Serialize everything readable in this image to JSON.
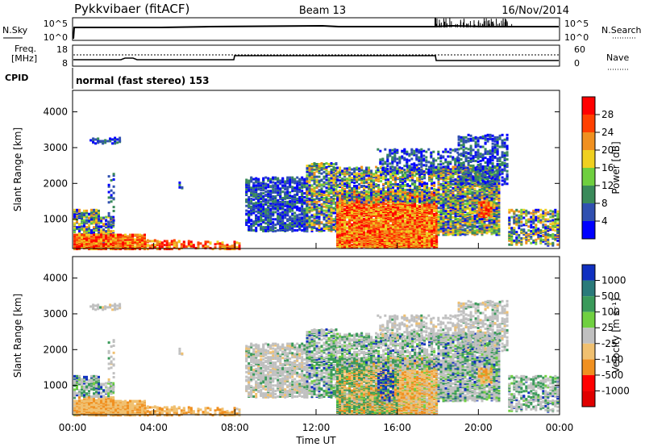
{
  "header": {
    "title": "Pykkvibaer (fitACF)",
    "beam": "Beam 13",
    "date": "16/Nov/2014"
  },
  "status_panels": {
    "nsky_label": "N.Sky",
    "nsky_ticks": [
      "10^5",
      "10^0"
    ],
    "nsearch_label": "N.Search",
    "nsearch_ticks": [
      "10^5",
      "10^0"
    ],
    "freq_label_line1": "Freq.",
    "freq_label_line2": "[MHz]",
    "freq_ticks": [
      "18",
      "8"
    ],
    "nave_label": "Nave",
    "nave_ticks": [
      "60",
      "0"
    ],
    "cpid_label": "CPID",
    "cpid_text": "normal (fast stereo) 153"
  },
  "chart_data": [
    {
      "type": "heatmap",
      "name": "power",
      "ylabel": "Slant Range [km]",
      "yticks": [
        "1000",
        "2000",
        "3000",
        "4000"
      ],
      "ylim": [
        180,
        4600
      ],
      "colorbar_label": "Power [dB]",
      "colorbar_ticks": [
        "4",
        "8",
        "12",
        "16",
        "20",
        "24",
        "28"
      ],
      "colors": [
        "#0000ff",
        "#3050b0",
        "#3a8a5a",
        "#6fcf3f",
        "#f0d020",
        "#f09020",
        "#ff4000",
        "#ff0000"
      ]
    },
    {
      "type": "heatmap",
      "name": "velocity",
      "ylabel": "Slant Range [km]",
      "yticks": [
        "1000",
        "2000",
        "3000",
        "4000"
      ],
      "ylim": [
        180,
        4600
      ],
      "xlabel": "Time UT",
      "xticks": [
        "00:00",
        "04:00",
        "08:00",
        "12:00",
        "16:00",
        "20:00",
        "00:00"
      ],
      "colorbar_label": "Velocity [m s⁻¹]",
      "colorbar_ticks": [
        "1000",
        "500",
        "100",
        "25",
        "-25",
        "-100",
        "-500",
        "-1000"
      ],
      "colors": [
        "#1030c0",
        "#2a7a7a",
        "#3a9a5a",
        "#70d040",
        "#c0c0c0",
        "#f0c070",
        "#f09020",
        "#ff0000"
      ]
    }
  ]
}
